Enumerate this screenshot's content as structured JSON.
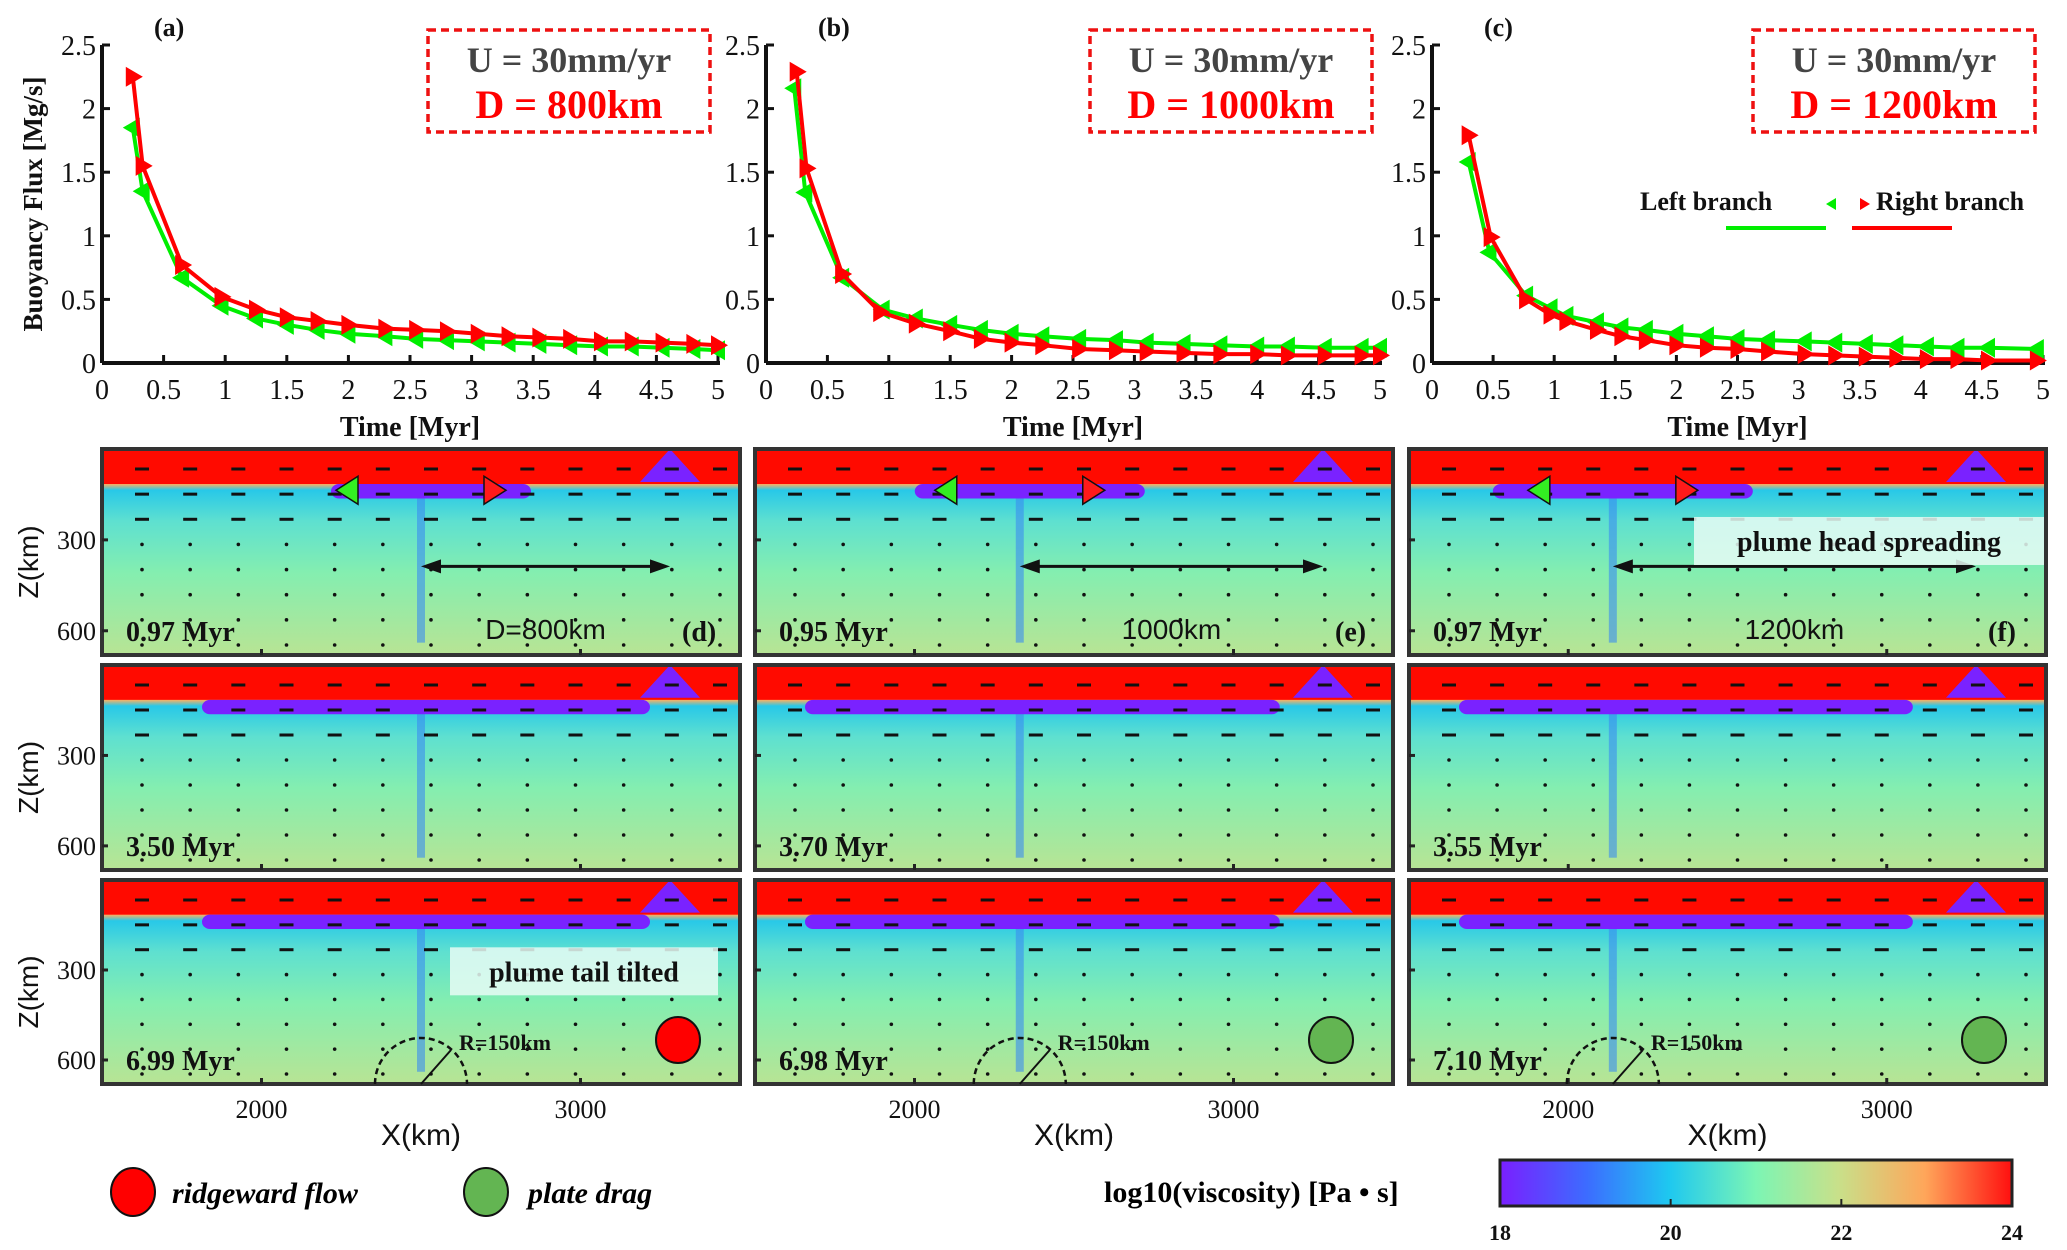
{
  "chart_data": [
    {
      "type": "line",
      "panel_label": "(a)",
      "title_line1": "U = 30mm/yr",
      "title_line2": "D = 800km",
      "xlabel": "Time [Myr]",
      "ylabel": "Buoyancy Flux [Mg/s]",
      "xlim": [
        0,
        5
      ],
      "ylim": [
        0,
        2.5
      ],
      "xticks": [
        "0",
        "0.5",
        "1",
        "1.5",
        "2",
        "2.5",
        "3",
        "3.5",
        "4",
        "4.5",
        "5"
      ],
      "yticks": [
        "0",
        "0.5",
        "1",
        "1.5",
        "2",
        "2.5"
      ],
      "series": [
        {
          "name": "Left branch",
          "color": "#00ee00",
          "marker": "triangle-left",
          "x": [
            0.25,
            0.33,
            0.65,
            0.97,
            1.25,
            1.5,
            1.75,
            2.0,
            2.3,
            2.55,
            2.8,
            3.05,
            3.3,
            3.55,
            3.8,
            4.05,
            4.3,
            4.55,
            4.8,
            5.0
          ],
          "y": [
            1.85,
            1.35,
            0.67,
            0.45,
            0.35,
            0.3,
            0.26,
            0.23,
            0.21,
            0.19,
            0.18,
            0.17,
            0.16,
            0.15,
            0.14,
            0.13,
            0.13,
            0.12,
            0.11,
            0.1
          ]
        },
        {
          "name": "Right branch",
          "color": "#ff0000",
          "marker": "triangle-right",
          "x": [
            0.25,
            0.33,
            0.65,
            0.97,
            1.25,
            1.5,
            1.75,
            2.0,
            2.3,
            2.55,
            2.8,
            3.05,
            3.3,
            3.55,
            3.8,
            4.05,
            4.3,
            4.55,
            4.8,
            5.0
          ],
          "y": [
            2.25,
            1.55,
            0.77,
            0.52,
            0.42,
            0.36,
            0.33,
            0.3,
            0.27,
            0.26,
            0.25,
            0.23,
            0.21,
            0.2,
            0.19,
            0.17,
            0.17,
            0.16,
            0.15,
            0.14
          ]
        }
      ]
    },
    {
      "type": "line",
      "panel_label": "(b)",
      "title_line1": "U = 30mm/yr",
      "title_line2": "D = 1000km",
      "xlabel": "Time [Myr]",
      "ylabel": "",
      "xlim": [
        0,
        5
      ],
      "ylim": [
        0,
        2.5
      ],
      "xticks": [
        "0",
        "0.5",
        "1",
        "1.5",
        "2",
        "2.5",
        "3",
        "3.5",
        "4",
        "4.5",
        "5"
      ],
      "yticks": [
        "0",
        "0.5",
        "1",
        "1.5",
        "2",
        "2.5"
      ],
      "series": [
        {
          "name": "Left branch",
          "color": "#00ee00",
          "marker": "triangle-left",
          "x": [
            0.23,
            0.32,
            0.62,
            0.95,
            1.22,
            1.5,
            1.75,
            2.0,
            2.25,
            2.55,
            2.85,
            3.1,
            3.4,
            3.7,
            4.0,
            4.25,
            4.55,
            4.85,
            5.0
          ],
          "y": [
            2.16,
            1.34,
            0.67,
            0.42,
            0.35,
            0.3,
            0.26,
            0.23,
            0.21,
            0.19,
            0.18,
            0.16,
            0.15,
            0.14,
            0.13,
            0.13,
            0.12,
            0.12,
            0.12
          ]
        },
        {
          "name": "Right branch",
          "color": "#ff0000",
          "marker": "triangle-right",
          "x": [
            0.25,
            0.33,
            0.62,
            0.93,
            1.22,
            1.5,
            1.75,
            2.0,
            2.25,
            2.55,
            2.85,
            3.1,
            3.4,
            3.7,
            4.0,
            4.25,
            4.55,
            4.85,
            5.0
          ],
          "y": [
            2.29,
            1.53,
            0.7,
            0.4,
            0.31,
            0.25,
            0.19,
            0.16,
            0.14,
            0.11,
            0.1,
            0.09,
            0.08,
            0.07,
            0.07,
            0.06,
            0.06,
            0.06,
            0.06
          ]
        }
      ]
    },
    {
      "type": "line",
      "panel_label": "(c)",
      "title_line1": "U = 30mm/yr",
      "title_line2": "D = 1200km",
      "xlabel": "Time [Myr]",
      "ylabel": "",
      "xlim": [
        0,
        5
      ],
      "ylim": [
        0,
        2.5
      ],
      "xticks": [
        "0",
        "0.5",
        "1",
        "1.5",
        "2",
        "2.5",
        "3",
        "3.5",
        "4",
        "4.5",
        "5"
      ],
      "yticks": [
        "0",
        "0.5",
        "1",
        "1.5",
        "2",
        "2.5"
      ],
      "legend": {
        "placement": "center-right",
        "left_label": "Left branch",
        "right_label": "Right branch"
      },
      "series": [
        {
          "name": "Left branch",
          "color": "#00ee00",
          "marker": "triangle-left",
          "x": [
            0.3,
            0.47,
            0.77,
            0.97,
            1.1,
            1.35,
            1.55,
            1.75,
            2.0,
            2.25,
            2.5,
            2.75,
            3.05,
            3.3,
            3.55,
            3.8,
            4.05,
            4.3,
            4.55,
            4.95
          ],
          "y": [
            1.58,
            0.87,
            0.53,
            0.43,
            0.37,
            0.32,
            0.28,
            0.26,
            0.23,
            0.21,
            0.19,
            0.18,
            0.17,
            0.16,
            0.15,
            0.14,
            0.13,
            0.12,
            0.12,
            0.11
          ]
        },
        {
          "name": "Right branch",
          "color": "#ff0000",
          "marker": "triangle-right",
          "x": [
            0.3,
            0.48,
            0.77,
            0.97,
            1.1,
            1.35,
            1.55,
            1.75,
            2.0,
            2.25,
            2.5,
            2.75,
            3.05,
            3.3,
            3.55,
            3.8,
            4.05,
            4.3,
            4.55,
            4.95
          ],
          "y": [
            1.79,
            0.99,
            0.5,
            0.38,
            0.33,
            0.26,
            0.21,
            0.18,
            0.14,
            0.12,
            0.11,
            0.09,
            0.07,
            0.06,
            0.05,
            0.04,
            0.03,
            0.03,
            0.02,
            0.02
          ]
        }
      ]
    }
  ],
  "viscosity_panels": {
    "xlabel": "X(km)",
    "ylabel": "Z(km)",
    "xticks": [
      "2000",
      "3000"
    ],
    "yticks": [
      "300",
      "600"
    ],
    "columns": [
      {
        "rows": [
          {
            "time": "0.97 Myr",
            "label": "(d)",
            "distance": "D=800km"
          },
          {
            "time": "3.50 Myr"
          },
          {
            "time": "6.99 Myr",
            "radius": "R=150km",
            "annotation": "plume tail tilted",
            "mode_color": "#ff0000"
          }
        ]
      },
      {
        "rows": [
          {
            "time": "0.95 Myr",
            "label": "(e)",
            "distance": "1000km"
          },
          {
            "time": "3.70 Myr"
          },
          {
            "time": "6.98 Myr",
            "radius": "R=150km",
            "mode_color": "#63b552"
          }
        ]
      },
      {
        "rows": [
          {
            "time": "0.97 Myr",
            "label": "(f)",
            "distance": "1200km",
            "annotation": "plume head spreading"
          },
          {
            "time": "3.55 Myr"
          },
          {
            "time": "7.10 Myr",
            "radius": "R=150km",
            "mode_color": "#63b552"
          }
        ]
      }
    ]
  },
  "legend": {
    "ridgeward": {
      "label": "ridgeward flow",
      "color": "#ff0000"
    },
    "drag": {
      "label": "plate drag",
      "color": "#63b552"
    }
  },
  "colorbar": {
    "title": "log10(viscosity) [Pa • s]",
    "ticks": [
      "18",
      "20",
      "22",
      "24"
    ],
    "range": [
      18,
      24
    ]
  }
}
